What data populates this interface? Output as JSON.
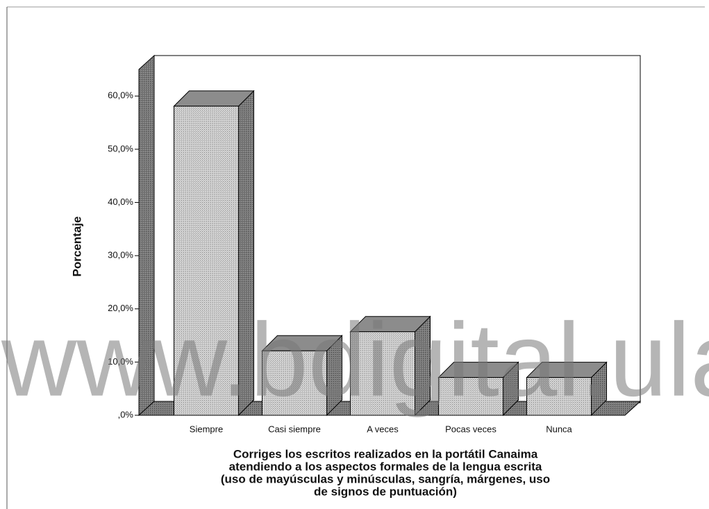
{
  "chart_data": {
    "type": "bar3d",
    "categories": [
      "Siempre",
      "Casi siempre",
      "A veces",
      "Pocas veces",
      "Nunca"
    ],
    "values": [
      58.1,
      12.1,
      15.7,
      7.1,
      7.1
    ],
    "color": "#cfcfcf",
    "ylabel": "Porcentaje",
    "xlabel_lines": [
      "Corriges los escritos realizados en la portátil Canaima",
      "atendiendo a los aspectos formales de la lengua escrita",
      "(uso de mayúsculas y minúsculas, sangría, márgenes, uso",
      "de signos de puntuación)"
    ],
    "ylim": [
      0,
      65
    ],
    "yticks": [
      {
        "value": 0,
        "label": ",0%"
      },
      {
        "value": 10,
        "label": "10,0%"
      },
      {
        "value": 20,
        "label": "20,0%"
      },
      {
        "value": 30,
        "label": "30,0%"
      },
      {
        "value": 40,
        "label": "40,0%"
      },
      {
        "value": 50,
        "label": "50,0%"
      },
      {
        "value": 60,
        "label": "60,0%"
      }
    ],
    "watermark": "www.bdigital.ula.ve"
  }
}
